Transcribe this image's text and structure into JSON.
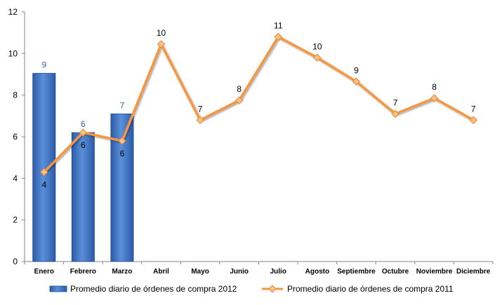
{
  "chart_data": {
    "type": "bar+line",
    "categories": [
      "Enero",
      "Febrero",
      "Marzo",
      "Abril",
      "Mayo",
      "Junio",
      "Julio",
      "Agosto",
      "Septiembre",
      "Octubre",
      "Noviembre",
      "Diciembre"
    ],
    "ylim": [
      0,
      12
    ],
    "yticks": [
      0,
      2,
      4,
      6,
      8,
      10,
      12
    ],
    "grid": false,
    "legend_position": "bottom",
    "series": [
      {
        "name": "Promedio diario de órdenes de compra 2012",
        "type": "bar",
        "color": "#3A6FC0",
        "label_color": "#3C66B0",
        "values": [
          9.05,
          6.2,
          7.1,
          null,
          null,
          null,
          null,
          null,
          null,
          null,
          null,
          null
        ],
        "labels": [
          "9",
          "6",
          "7",
          "",
          "",
          "",
          "",
          "",
          "",
          "",
          "",
          ""
        ]
      },
      {
        "name": "Promedio diario de órdenes de compra 2011",
        "type": "line",
        "color": "#F7963F",
        "values": [
          4.3,
          6.2,
          5.8,
          10.45,
          6.8,
          7.75,
          10.8,
          9.8,
          8.65,
          7.1,
          7.85,
          6.8
        ],
        "labels": [
          "4",
          "6",
          "6",
          "10",
          "7",
          "8",
          "11",
          "10",
          "9",
          "7",
          "8",
          "7"
        ]
      }
    ]
  }
}
